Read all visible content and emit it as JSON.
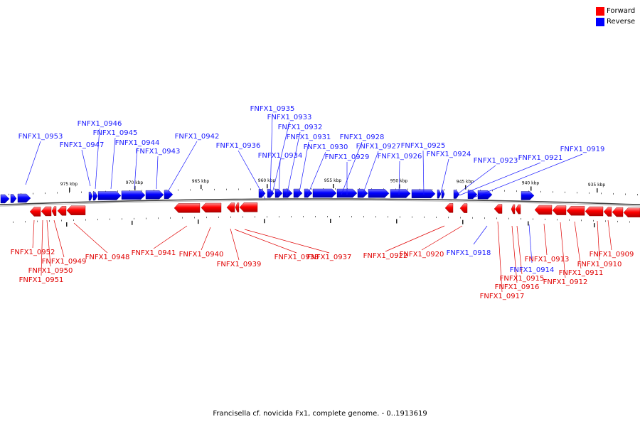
{
  "legend": {
    "forward": {
      "label": "Forward",
      "color": "#ff0000"
    },
    "reverse": {
      "label": "Reverse",
      "color": "#0000ff"
    }
  },
  "caption": "Francisella cf. novicida Fx1, complete genome. - 0..1913619",
  "scale_labels": [
    "975 kbp",
    "970 kbp",
    "965 kbp",
    "960 kbp",
    "955 kbp",
    "950 kbp",
    "945 kbp",
    "940 kbp",
    "935 kbp"
  ],
  "reverse_genes": [
    "FNFX1_0953",
    "FNFX1_0947",
    "FNFX1_0946",
    "FNFX1_0945",
    "FNFX1_0944",
    "FNFX1_0943",
    "FNFX1_0942",
    "FNFX1_0936",
    "FNFX1_0935",
    "FNFX1_0933",
    "FNFX1_0934",
    "FNFX1_0932",
    "FNFX1_0931",
    "FNFX1_0930",
    "FNFX1_0929",
    "FNFX1_0928",
    "FNFX1_0927",
    "FNFX1_0926",
    "FNFX1_0925",
    "FNFX1_0924",
    "FNFX1_0923",
    "FNFX1_0921",
    "FNFX1_0919",
    "FNFX1_0918",
    "FNFX1_0914"
  ],
  "forward_genes": [
    "FNFX1_0952",
    "FNFX1_0951",
    "FNFX1_0950",
    "FNFX1_0949",
    "FNFX1_0948",
    "FNFX1_0941",
    "FNFX1_0940",
    "FNFX1_0939",
    "FNFX1_0938",
    "FNFX1_0937",
    "FNFX1_0922",
    "FNFX1_0920",
    "FNFX1_0917",
    "FNFX1_0916",
    "FNFX1_0915",
    "FNFX1_0913",
    "FNFX1_0912",
    "FNFX1_0911",
    "FNFX1_0910",
    "FNFX1_0909"
  ]
}
